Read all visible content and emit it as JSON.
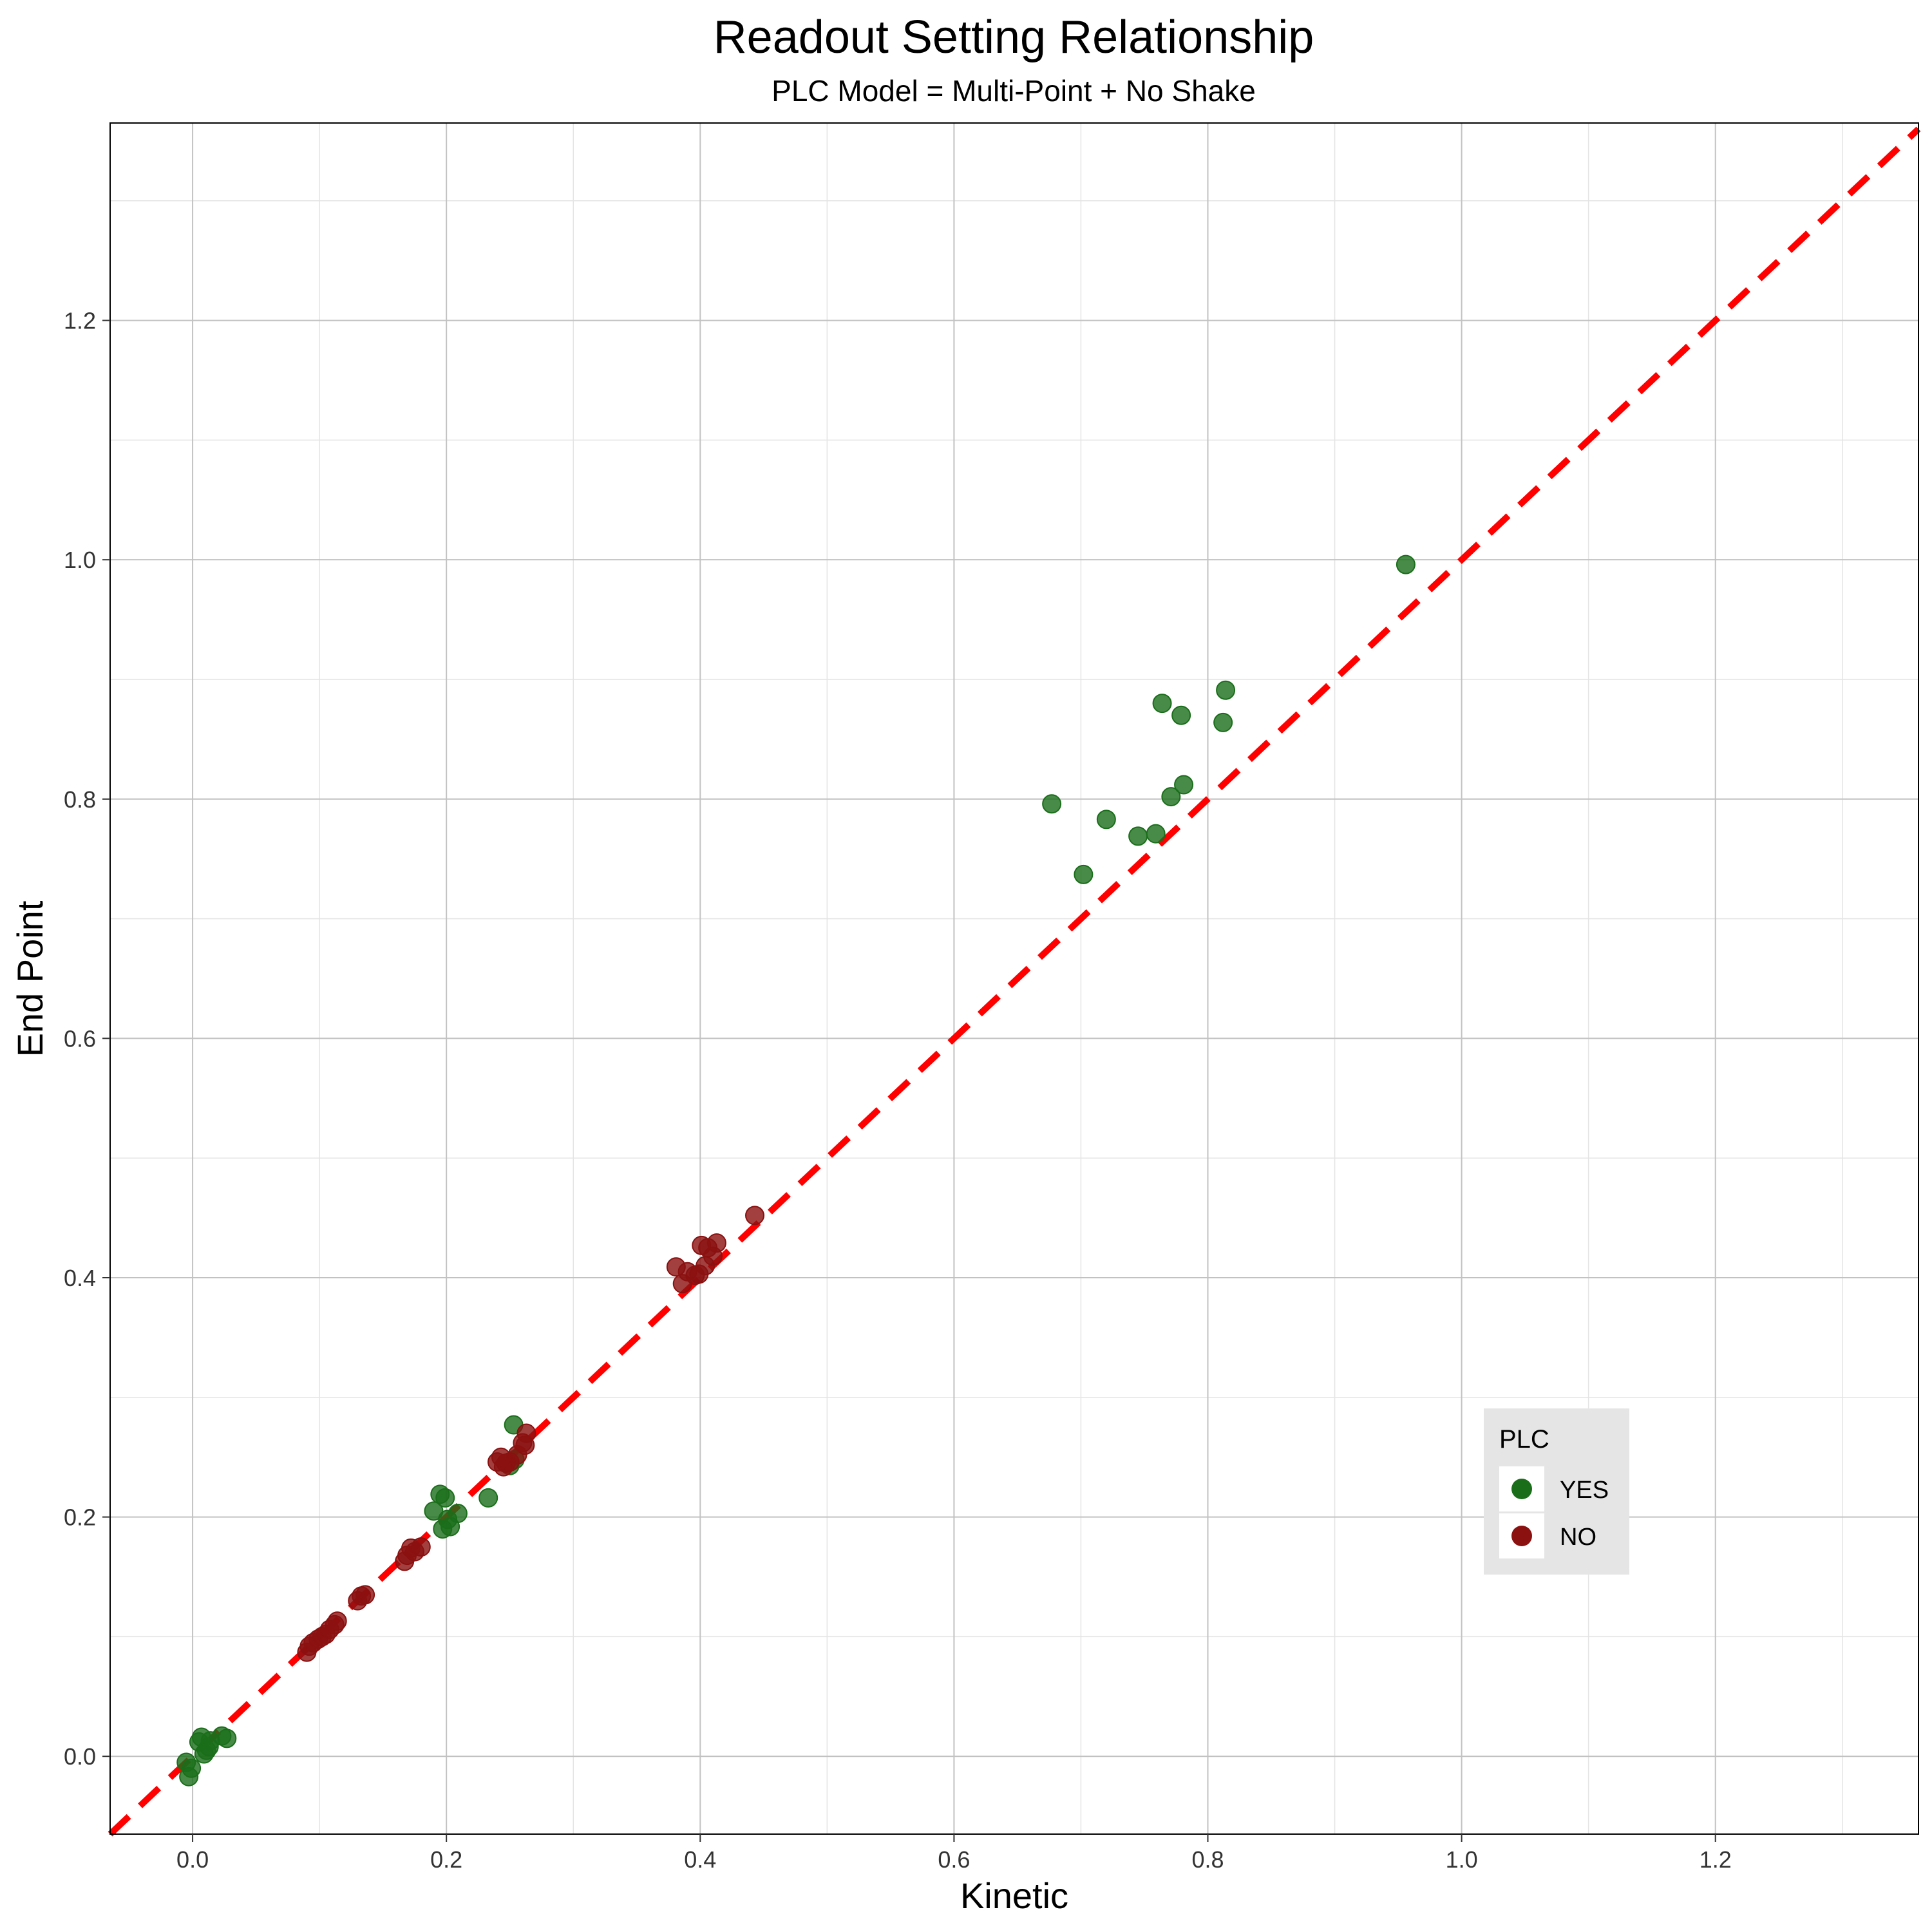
{
  "chart_data": {
    "type": "scatter",
    "title": "Readout Setting Relationship",
    "subtitle": "PLC Model = Multi-Point + No Shake",
    "xlabel": "Kinetic",
    "ylabel": "End Point",
    "xlim": [
      -0.065,
      1.36
    ],
    "ylim": [
      -0.065,
      1.365
    ],
    "x_ticks": [
      0.0,
      0.2,
      0.4,
      0.6,
      0.8,
      1.0,
      1.2
    ],
    "x_tick_labels": [
      "0.0",
      "0.2",
      "0.4",
      "0.6",
      "0.8",
      "1.0",
      "1.2"
    ],
    "y_ticks": [
      0.0,
      0.2,
      0.4,
      0.6,
      0.8,
      1.0,
      1.2
    ],
    "y_tick_labels": [
      "0.0",
      "0.2",
      "0.4",
      "0.6",
      "0.8",
      "1.0",
      "1.2"
    ],
    "grid": true,
    "reference_line": {
      "type": "identity",
      "style": "dashed",
      "color": "#ff0000"
    },
    "legend": {
      "title": "PLC",
      "position": "bottom-right"
    },
    "series": [
      {
        "name": "YES",
        "color": "#1a6e1a",
        "points": [
          [
            -0.005,
            -0.005
          ],
          [
            -0.003,
            -0.017
          ],
          [
            -0.001,
            -0.01
          ],
          [
            0.005,
            0.012
          ],
          [
            0.007,
            0.016
          ],
          [
            0.009,
            0.002
          ],
          [
            0.011,
            0.005
          ],
          [
            0.013,
            0.008
          ],
          [
            0.014,
            0.013
          ],
          [
            0.023,
            0.017
          ],
          [
            0.027,
            0.015
          ],
          [
            0.19,
            0.205
          ],
          [
            0.195,
            0.219
          ],
          [
            0.197,
            0.19
          ],
          [
            0.199,
            0.216
          ],
          [
            0.201,
            0.198
          ],
          [
            0.203,
            0.192
          ],
          [
            0.209,
            0.203
          ],
          [
            0.233,
            0.216
          ],
          [
            0.25,
            0.243
          ],
          [
            0.253,
            0.277
          ],
          [
            0.254,
            0.248
          ],
          [
            0.677,
            0.796
          ],
          [
            0.702,
            0.737
          ],
          [
            0.72,
            0.783
          ],
          [
            0.745,
            0.769
          ],
          [
            0.759,
            0.771
          ],
          [
            0.764,
            0.88
          ],
          [
            0.771,
            0.802
          ],
          [
            0.779,
            0.87
          ],
          [
            0.781,
            0.812
          ],
          [
            0.812,
            0.864
          ],
          [
            0.814,
            0.891
          ],
          [
            0.956,
            0.996
          ]
        ]
      },
      {
        "name": "NO",
        "color": "#8b1010",
        "points": [
          [
            0.09,
            0.087
          ],
          [
            0.092,
            0.092
          ],
          [
            0.095,
            0.095
          ],
          [
            0.099,
            0.098
          ],
          [
            0.102,
            0.1
          ],
          [
            0.105,
            0.102
          ],
          [
            0.108,
            0.106
          ],
          [
            0.112,
            0.11
          ],
          [
            0.114,
            0.113
          ],
          [
            0.13,
            0.13
          ],
          [
            0.133,
            0.134
          ],
          [
            0.136,
            0.135
          ],
          [
            0.167,
            0.163
          ],
          [
            0.169,
            0.168
          ],
          [
            0.172,
            0.174
          ],
          [
            0.175,
            0.171
          ],
          [
            0.18,
            0.175
          ],
          [
            0.24,
            0.246
          ],
          [
            0.243,
            0.25
          ],
          [
            0.245,
            0.242
          ],
          [
            0.247,
            0.245
          ],
          [
            0.25,
            0.246
          ],
          [
            0.256,
            0.252
          ],
          [
            0.26,
            0.262
          ],
          [
            0.262,
            0.26
          ],
          [
            0.263,
            0.27
          ],
          [
            0.381,
            0.409
          ],
          [
            0.386,
            0.395
          ],
          [
            0.39,
            0.405
          ],
          [
            0.396,
            0.402
          ],
          [
            0.399,
            0.403
          ],
          [
            0.401,
            0.427
          ],
          [
            0.404,
            0.41
          ],
          [
            0.406,
            0.425
          ],
          [
            0.41,
            0.418
          ],
          [
            0.413,
            0.429
          ],
          [
            0.443,
            0.452
          ]
        ]
      }
    ]
  }
}
